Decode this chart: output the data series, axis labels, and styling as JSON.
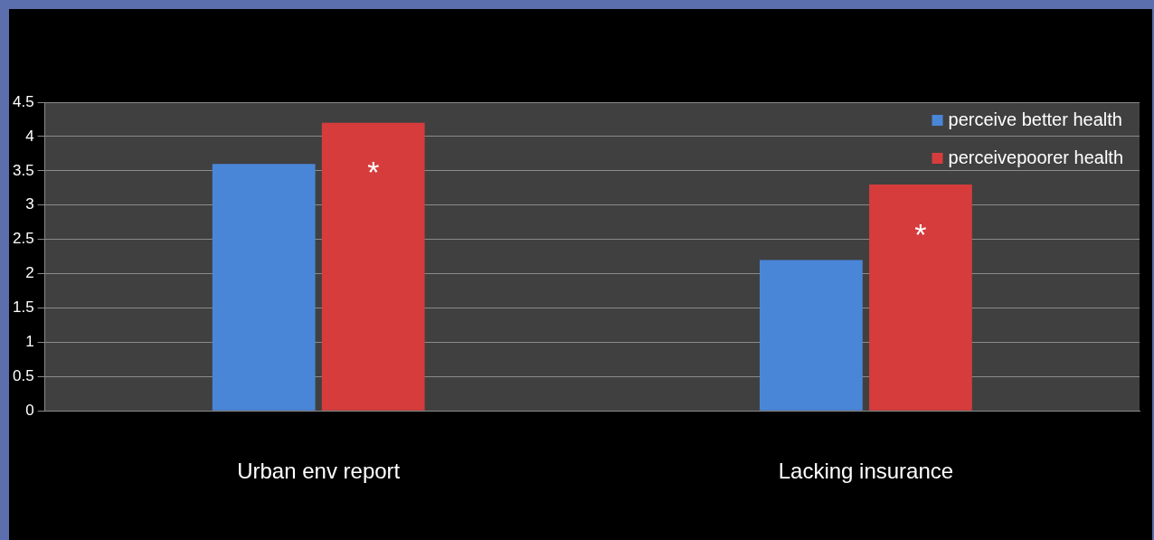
{
  "chart_data": {
    "type": "bar",
    "categories": [
      "Urban env report",
      "Lacking insurance"
    ],
    "series": [
      {
        "name": "perceive better health",
        "color": "#4a86d8",
        "values": [
          3.6,
          2.2
        ]
      },
      {
        "name": "perceivepoorer health",
        "color": "#d63c3c",
        "values": [
          4.2,
          3.3
        ]
      }
    ],
    "ylim": [
      0,
      4.5
    ],
    "yticks": [
      0,
      0.5,
      1,
      1.5,
      2,
      2.5,
      3,
      3.5,
      4,
      4.5
    ],
    "grid": "y",
    "legend": "top right",
    "annotations": [
      {
        "text": "*",
        "x": "Urban env report",
        "y": 3.55
      },
      {
        "text": "*",
        "x": "Lacking insurance",
        "y": 2.65
      }
    ]
  }
}
